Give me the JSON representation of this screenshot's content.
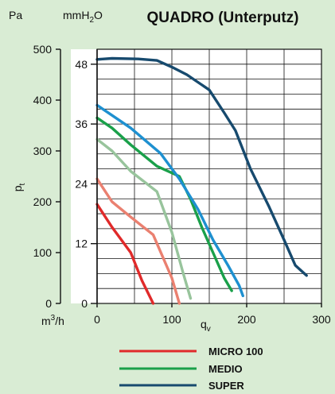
{
  "chart_data": {
    "type": "line",
    "title": "QUADRO (Unterputz)",
    "xlabel": "q",
    "xlabel_sub": "v",
    "x_unit": "m",
    "x_unit_sup": "3",
    "x_unit_tail": "/h",
    "ylabel": "p",
    "ylabel_sub": "t",
    "y_unit_left": "Pa",
    "y_unit_inner": "mmH",
    "y_unit_inner_sub": "2",
    "y_unit_inner_tail": "O",
    "xlim": [
      0,
      300
    ],
    "ylim": [
      0,
      500
    ],
    "y2lim": [
      0,
      51
    ],
    "x_ticks": [
      0,
      100,
      200,
      300
    ],
    "y_ticks": [
      0,
      100,
      200,
      300,
      400,
      500
    ],
    "y2_ticks": [
      0,
      12,
      24,
      36,
      48
    ],
    "grid": true,
    "legend_position": "bottom",
    "legend": [
      {
        "label": "MICRO 100",
        "color": "#e02a2a"
      },
      {
        "label": "MEDIO",
        "color": "#1aa04a"
      },
      {
        "label": "SUPER",
        "color": "#174a6e"
      }
    ],
    "series": [
      {
        "group": "MICRO 100",
        "color": "#e02a2a",
        "x": [
          0,
          20,
          45,
          60,
          75
        ],
        "y": [
          195,
          150,
          100,
          45,
          0
        ]
      },
      {
        "group": "MICRO 100",
        "color": "#ea8070",
        "x": [
          0,
          20,
          45,
          75,
          100,
          110
        ],
        "y": [
          245,
          200,
          170,
          135,
          50,
          0
        ]
      },
      {
        "group": "MICRO 100",
        "color": "#98c49c",
        "x": [
          0,
          20,
          45,
          80,
          100,
          115,
          125
        ],
        "y": [
          323,
          300,
          260,
          220,
          140,
          60,
          10
        ]
      },
      {
        "group": "MEDIO",
        "color": "#1aa04a",
        "x": [
          0,
          20,
          45,
          80,
          110,
          125,
          140,
          155,
          170,
          180
        ],
        "y": [
          365,
          345,
          312,
          270,
          250,
          205,
          150,
          100,
          50,
          25
        ]
      },
      {
        "group": "SUPER",
        "color": "#1e90d0",
        "x": [
          0,
          20,
          45,
          85,
          110,
          135,
          155,
          175,
          190,
          195
        ],
        "y": [
          390,
          370,
          345,
          295,
          245,
          185,
          125,
          75,
          35,
          15
        ]
      },
      {
        "group": "SUPER",
        "color": "#174a6e",
        "x": [
          0,
          20,
          55,
          80,
          100,
          120,
          150,
          170,
          185,
          205,
          230,
          250,
          265,
          280
        ],
        "y": [
          480,
          482,
          481,
          478,
          465,
          450,
          420,
          375,
          340,
          265,
          190,
          125,
          75,
          55
        ]
      }
    ]
  }
}
